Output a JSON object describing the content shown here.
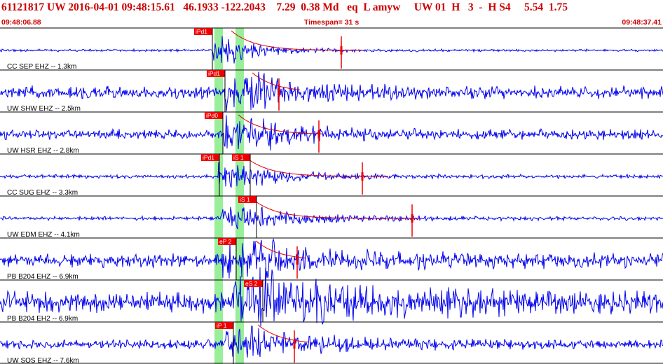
{
  "header": {
    "event_line": "61121817 UW 2016-04-01 09:48:15.61   46.1933 -122.2043    7.29  0.38 Md   eq  L amyw     UW 01  H   3  -  H S4     5.54  1.75",
    "start_time": "09:48:06.88",
    "timespan_label": "Timespan=  31 s",
    "end_time": "09:48:37.41"
  },
  "colors": {
    "header_red": "#cc0000",
    "trace_blue": "#0000ee",
    "pick_red": "#ee0000",
    "window_green": "#99ee99",
    "coda_red": "#dd0000"
  },
  "traces": [
    {
      "label": "CC SEP EHZ -- 1.3km",
      "picks": [
        {
          "text": "iPd1"
        }
      ]
    },
    {
      "label": "UW SHW EHZ -- 2.5km",
      "picks": [
        {
          "text": "iPd1"
        }
      ]
    },
    {
      "label": "UW HSR EHZ -- 2.8km",
      "picks": [
        {
          "text": "iPd0"
        }
      ]
    },
    {
      "label": "CC SUG EHZ -- 3.3km",
      "picks": [
        {
          "text": "iPd1"
        },
        {
          "text": "iS 1"
        }
      ]
    },
    {
      "label": "UW EDM EHZ -- 4.1km",
      "picks": [
        {
          "text": "iS 1"
        }
      ]
    },
    {
      "label": "PB B204 EHZ -- 6.9km",
      "picks": [
        {
          "text": "eP 2"
        }
      ]
    },
    {
      "label": "PB B204 EH2 -- 6.9km",
      "picks": [
        {
          "text": "eS 2"
        }
      ]
    },
    {
      "label": "UW SOS EHZ -- 7.6km",
      "picks": [
        {
          "text": "iP 1"
        }
      ]
    }
  ]
}
